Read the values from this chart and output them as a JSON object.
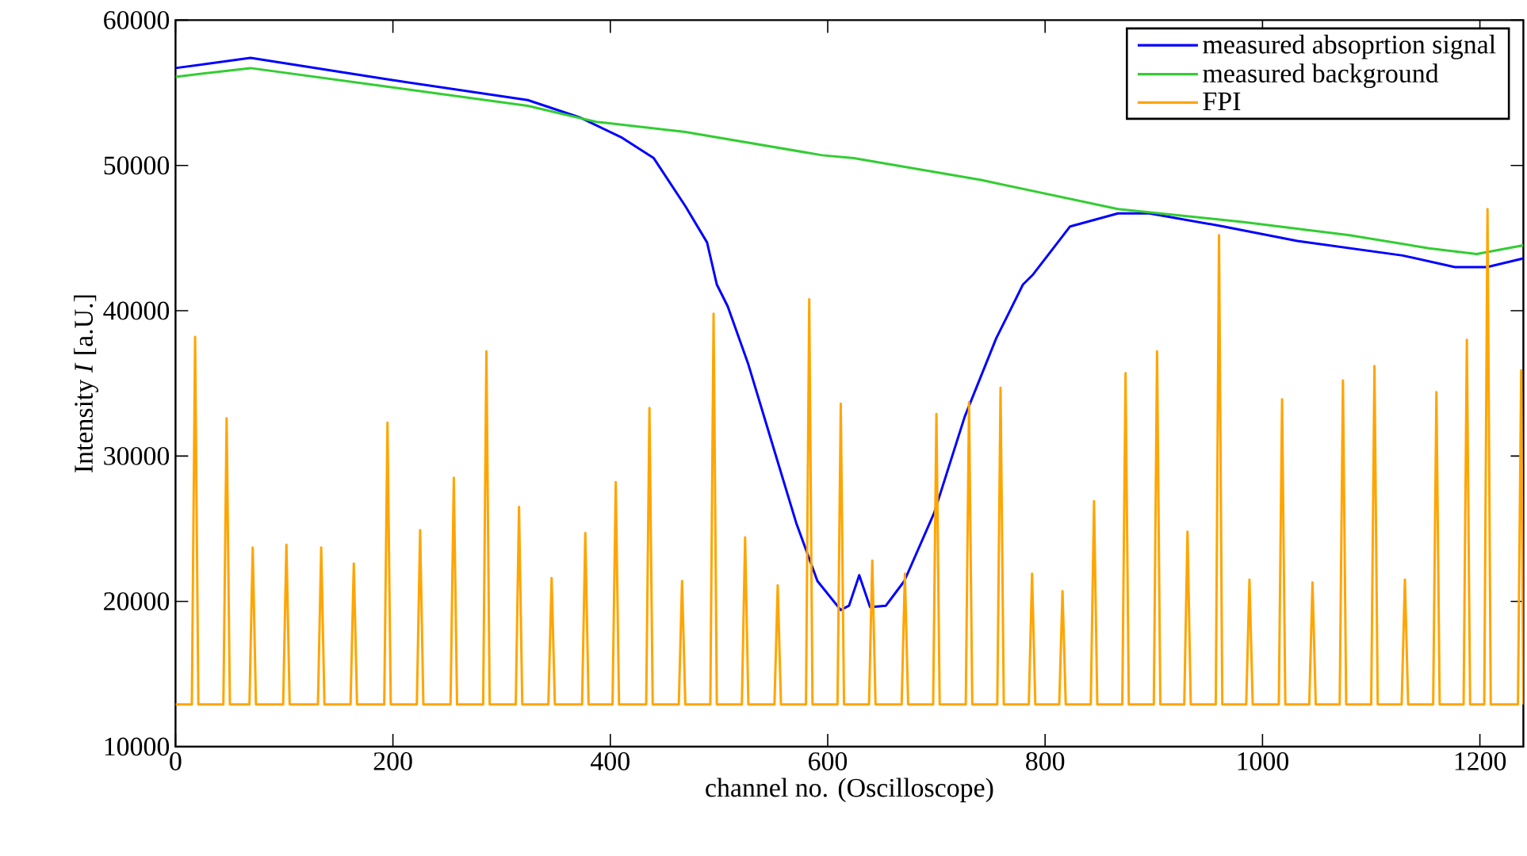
{
  "chart_data": {
    "type": "line",
    "xlabel": "channel no. (Oscilloscope)",
    "ylabel": "Intensity *I* [a.U.]",
    "xlim": [
      0,
      1240
    ],
    "ylim": [
      10000,
      60000
    ],
    "xticks": [
      0,
      200,
      400,
      600,
      800,
      1000,
      1200
    ],
    "yticks": [
      10000,
      20000,
      30000,
      40000,
      50000,
      60000
    ],
    "grid": false,
    "legend": "top right",
    "marker": "none",
    "line_style": "solid",
    "series": [
      {
        "name": "measured absoprtion signal",
        "color": "#0000ff",
        "x": [
          0,
          69,
          197,
          324,
          372,
          411,
          440,
          469,
          489,
          498,
          508,
          527,
          552,
          571,
          590.5,
          612,
          619.6,
          629,
          639,
          653.5,
          670.5,
          698,
          726,
          755,
          765,
          779.6,
          789,
          823,
          867,
          896,
          964,
          1032,
          1129,
          1177,
          1206.5,
          1240
        ],
        "values": [
          56700,
          57400,
          55900,
          54500,
          53300,
          51900,
          50500,
          47200,
          44700,
          41800,
          40300,
          36300,
          30100,
          25400,
          21400,
          19400,
          19700,
          21800,
          19600,
          19700,
          21400,
          26100,
          32700,
          38100,
          39600,
          41800,
          42500,
          45800,
          46700,
          46700,
          45800,
          44800,
          43800,
          43000,
          43000,
          43600
        ]
      },
      {
        "name": "measured background",
        "color": "#32cd32",
        "x": [
          0,
          69,
          197,
          324,
          387,
          469,
          595,
          624,
          741,
          867,
          983,
          1080,
          1153,
          1197,
          1240
        ],
        "values": [
          56100,
          56700,
          55400,
          54100,
          53000,
          52300,
          50700,
          50500,
          49000,
          47000,
          46100,
          45200,
          44300,
          43900,
          44500
        ]
      },
      {
        "name": "FPI",
        "color": "#ffa500",
        "x": [
          0,
          15,
          18,
          21,
          44,
          47,
          50,
          68,
          71,
          74,
          99,
          102,
          105,
          131,
          134,
          137,
          161,
          164,
          167,
          192,
          195,
          198,
          222,
          225,
          228,
          253,
          256,
          259,
          283,
          286,
          289,
          313,
          316,
          319,
          343,
          346,
          349,
          374,
          377,
          380,
          402,
          405,
          408,
          433,
          436,
          439,
          463,
          466,
          469,
          492,
          495,
          498,
          521,
          524,
          527,
          551,
          554,
          557,
          580,
          583,
          586,
          609,
          612,
          615,
          638,
          641,
          644,
          668,
          671,
          674,
          697,
          700,
          703,
          727,
          730,
          733,
          756,
          759,
          762,
          785,
          788,
          791,
          813,
          816,
          819,
          842,
          845,
          848,
          871,
          874,
          877,
          900,
          903,
          906,
          928,
          931,
          934,
          957,
          960,
          963,
          985,
          988,
          991,
          1015,
          1018,
          1021,
          1043,
          1046,
          1049,
          1071,
          1074,
          1077,
          1100,
          1103,
          1106,
          1128,
          1131,
          1134,
          1157,
          1160,
          1163,
          1185,
          1188,
          1191,
          1204,
          1207,
          1210,
          1235,
          1238,
          1240
        ],
        "values": [
          12900,
          12900,
          38200,
          12900,
          12900,
          32600,
          12900,
          12900,
          23700,
          12900,
          12900,
          23900,
          12900,
          12900,
          23700,
          12900,
          12900,
          22600,
          12900,
          12900,
          32300,
          12900,
          12900,
          24900,
          12900,
          12900,
          28500,
          12900,
          12900,
          37200,
          12900,
          12900,
          26500,
          12900,
          12900,
          21600,
          12900,
          12900,
          24700,
          12900,
          12900,
          28200,
          12900,
          12900,
          33300,
          12900,
          12900,
          21400,
          12900,
          12900,
          39800,
          12900,
          12900,
          24400,
          12900,
          12900,
          21100,
          12900,
          12900,
          40800,
          12900,
          12900,
          33600,
          12900,
          12900,
          22800,
          12900,
          12900,
          21900,
          12900,
          12900,
          32900,
          12900,
          12900,
          33700,
          12900,
          12900,
          34700,
          12900,
          12900,
          21900,
          12900,
          12900,
          20700,
          12900,
          12900,
          26900,
          12900,
          12900,
          35700,
          12900,
          12900,
          37200,
          12900,
          12900,
          24800,
          12900,
          12900,
          45200,
          12900,
          12900,
          21500,
          12900,
          12900,
          33900,
          12900,
          12900,
          21300,
          12900,
          12900,
          35200,
          12900,
          12900,
          36200,
          12900,
          12900,
          21500,
          12900,
          12900,
          34400,
          12900,
          12900,
          38000,
          12900,
          12900,
          47000,
          12900,
          12900,
          35900,
          12900
        ]
      }
    ]
  }
}
